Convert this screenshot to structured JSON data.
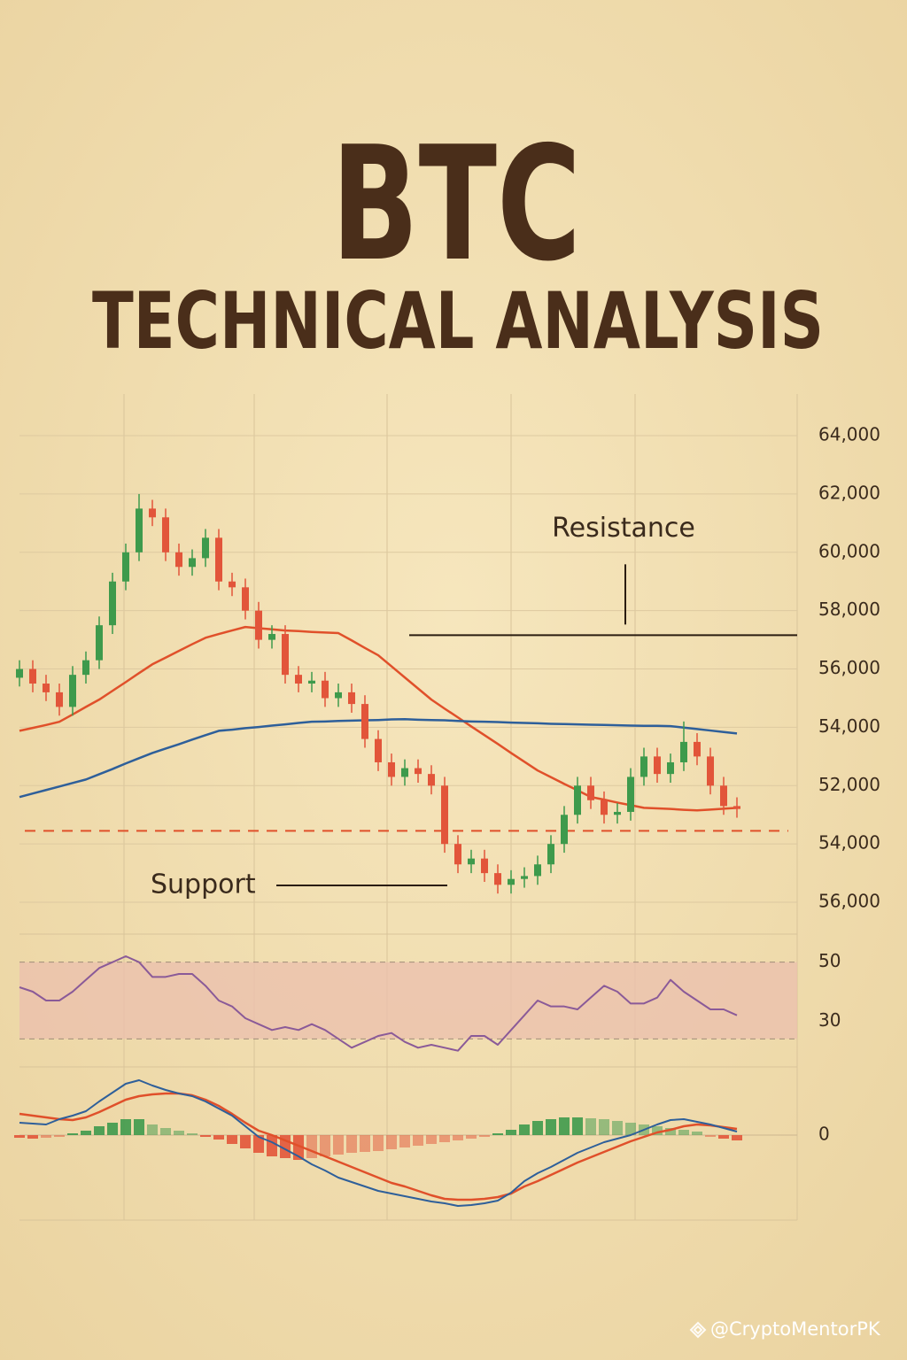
{
  "header": {
    "title": "BTC",
    "subtitle": "TECHNICAL ANALYSIS"
  },
  "watermark": "@CryptoMentorPK",
  "chart_data": [
    {
      "type": "candlestick",
      "open": [
        55700,
        56000,
        55500,
        55200,
        54700,
        55800,
        56300,
        57500,
        59000,
        60000,
        61500,
        61200,
        60000,
        59500,
        59800,
        60500,
        59000,
        58800,
        58000,
        57000,
        57200,
        55800,
        55500,
        55600,
        55000,
        55200,
        54800,
        53600,
        52800,
        52300,
        52600,
        52400,
        52000,
        50000,
        49300,
        49500,
        49000,
        48600,
        48800,
        48900,
        49300,
        50000,
        51000,
        52000,
        51500,
        51000,
        51100,
        52300,
        53000,
        52400,
        52800,
        53500,
        53000,
        52000,
        51300
      ],
      "high": [
        56300,
        56300,
        55800,
        55500,
        56100,
        56600,
        57800,
        59300,
        60300,
        62000,
        61800,
        61500,
        60300,
        60100,
        60800,
        60800,
        59300,
        59100,
        58300,
        57500,
        57500,
        56100,
        55900,
        55900,
        55500,
        55500,
        55100,
        53900,
        53100,
        52900,
        52900,
        52700,
        52300,
        50300,
        49800,
        49800,
        49300,
        49100,
        49200,
        49600,
        50300,
        51300,
        52300,
        52300,
        51800,
        51400,
        52600,
        53300,
        53300,
        53100,
        54200,
        53800,
        53300,
        52300,
        51600
      ],
      "low": [
        55400,
        55200,
        54900,
        54400,
        54400,
        55500,
        56000,
        57200,
        58700,
        59700,
        60900,
        59700,
        59200,
        59200,
        59500,
        58700,
        58500,
        57700,
        56700,
        56700,
        55500,
        55200,
        55200,
        54700,
        54700,
        54500,
        53300,
        52500,
        52000,
        52000,
        52100,
        51700,
        49700,
        49000,
        49000,
        48700,
        48300,
        48300,
        48500,
        48600,
        49000,
        49700,
        50700,
        51200,
        50700,
        50700,
        50800,
        52000,
        52100,
        52100,
        52500,
        52700,
        51700,
        51000,
        50900
      ],
      "close": [
        56000,
        55500,
        55200,
        54700,
        55800,
        56300,
        57500,
        59000,
        60000,
        61500,
        61200,
        60000,
        59500,
        59800,
        60500,
        59000,
        58800,
        58000,
        57000,
        57200,
        55800,
        55500,
        55600,
        55000,
        55200,
        54800,
        53600,
        52800,
        52300,
        52600,
        52400,
        52000,
        50000,
        49300,
        49500,
        49000,
        48600,
        48800,
        48900,
        49300,
        50000,
        51000,
        52000,
        51500,
        51000,
        51100,
        52300,
        53000,
        52400,
        52800,
        53500,
        53000,
        52000,
        51300,
        51200
      ],
      "up_color": "#3e9a4c",
      "down_color": "#e2553a",
      "moving_averages": [
        {
          "color": "#e0502a",
          "values": [
            53880,
            53980,
            54080,
            54190,
            54440,
            54700,
            54950,
            55250,
            55550,
            55860,
            56160,
            56390,
            56620,
            56850,
            57070,
            57200,
            57320,
            57440,
            57400,
            57360,
            57320,
            57300,
            57270,
            57250,
            57230,
            56980,
            56720,
            56470,
            56090,
            55710,
            55330,
            54950,
            54640,
            54340,
            54030,
            53730,
            53430,
            53120,
            52820,
            52520,
            52290,
            52060,
            51840,
            51610,
            51520,
            51420,
            51330,
            51240,
            51220,
            51200,
            51170,
            51150,
            51180,
            51210,
            51240
          ]
        },
        {
          "color": "#2e5f9a",
          "values": [
            51610,
            51730,
            51850,
            51970,
            52090,
            52210,
            52390,
            52570,
            52760,
            52940,
            53120,
            53270,
            53420,
            53580,
            53730,
            53880,
            53920,
            53970,
            54010,
            54060,
            54100,
            54150,
            54190,
            54200,
            54220,
            54230,
            54240,
            54250,
            54270,
            54280,
            54260,
            54250,
            54240,
            54220,
            54200,
            54190,
            54180,
            54160,
            54150,
            54140,
            54120,
            54110,
            54100,
            54090,
            54080,
            54070,
            54060,
            54050,
            54050,
            54040,
            53990,
            53940,
            53890,
            53840,
            53790
          ]
        }
      ],
      "ylim": [
        47000,
        64700
      ],
      "yticks": [
        {
          "value": 64000,
          "label": "64,000"
        },
        {
          "value": 62000,
          "label": "62,000"
        },
        {
          "value": 60000,
          "label": "60,000"
        },
        {
          "value": 58000,
          "label": "58,000"
        },
        {
          "value": 56000,
          "label": "56,000"
        },
        {
          "value": 54000,
          "label": "54,000"
        },
        {
          "value": 52000,
          "label": "52,000"
        }
      ],
      "lower_axis_labels": [
        "54,000",
        "56,000"
      ],
      "grid": true,
      "resistance": 57160,
      "resistance_label": "Resistance",
      "support": 50450,
      "support_label": "Support",
      "support_color": "#e0502a"
    },
    {
      "type": "line",
      "values": [
        41.5,
        40,
        37,
        37,
        40,
        44,
        48,
        50,
        52,
        50,
        45,
        45,
        46,
        46,
        42,
        37,
        35,
        31,
        29,
        27,
        28,
        27,
        29,
        27,
        24,
        21,
        23,
        25,
        26,
        23,
        21,
        22,
        21,
        20,
        25,
        25,
        22,
        27,
        32,
        37,
        35,
        35,
        34,
        38,
        42,
        40,
        36,
        36,
        38,
        44,
        40,
        37,
        34,
        34,
        32
      ],
      "color": "#8a5a98",
      "ylim": [
        16,
        58
      ],
      "yticks": [
        30,
        50
      ],
      "band": [
        24,
        50
      ],
      "band_color": "#ebbfae"
    },
    {
      "type": "macd",
      "macd": [
        14,
        13,
        12,
        18,
        22,
        27,
        38,
        48,
        58,
        62,
        56,
        51,
        47,
        44,
        38,
        30,
        22,
        10,
        -2,
        -8,
        -16,
        -24,
        -33,
        -40,
        -48,
        -53,
        -58,
        -63,
        -66,
        -69,
        -72,
        -75,
        -77,
        -80,
        -79,
        -77,
        -74,
        -65,
        -52,
        -43,
        -36,
        -28,
        -20,
        -14,
        -8,
        -4,
        0,
        6,
        12,
        17,
        18,
        15,
        12,
        8,
        4
      ],
      "signal": [
        24,
        22,
        20,
        18,
        17,
        20,
        26,
        33,
        40,
        44,
        46,
        47,
        47,
        45,
        40,
        33,
        24,
        14,
        5,
        0,
        -6,
        -12,
        -18,
        -24,
        -30,
        -36,
        -42,
        -48,
        -54,
        -58,
        -63,
        -68,
        -72,
        -73,
        -73,
        -72,
        -70,
        -66,
        -58,
        -52,
        -45,
        -38,
        -31,
        -25,
        -19,
        -13,
        -7,
        -2,
        3,
        6,
        10,
        12,
        11,
        9,
        7
      ],
      "histogram": [
        -3,
        -4,
        -3,
        -2,
        2,
        5,
        10,
        14,
        18,
        18,
        12,
        8,
        5,
        2,
        -2,
        -5,
        -10,
        -15,
        -20,
        -24,
        -26,
        -28,
        -26,
        -24,
        -22,
        -20,
        -19,
        -18,
        -16,
        -14,
        -12,
        -10,
        -8,
        -6,
        -4,
        -2,
        2,
        6,
        12,
        16,
        18,
        20,
        20,
        19,
        18,
        16,
        14,
        12,
        10,
        8,
        6,
        4,
        -2,
        -4,
        -6
      ],
      "macd_color": "#2e5f9a",
      "signal_color": "#e0502a",
      "up_color": "#3e9a4c",
      "down_color": "#e2553a",
      "ylim": [
        -93,
        77
      ],
      "yticks": [
        0
      ]
    }
  ]
}
